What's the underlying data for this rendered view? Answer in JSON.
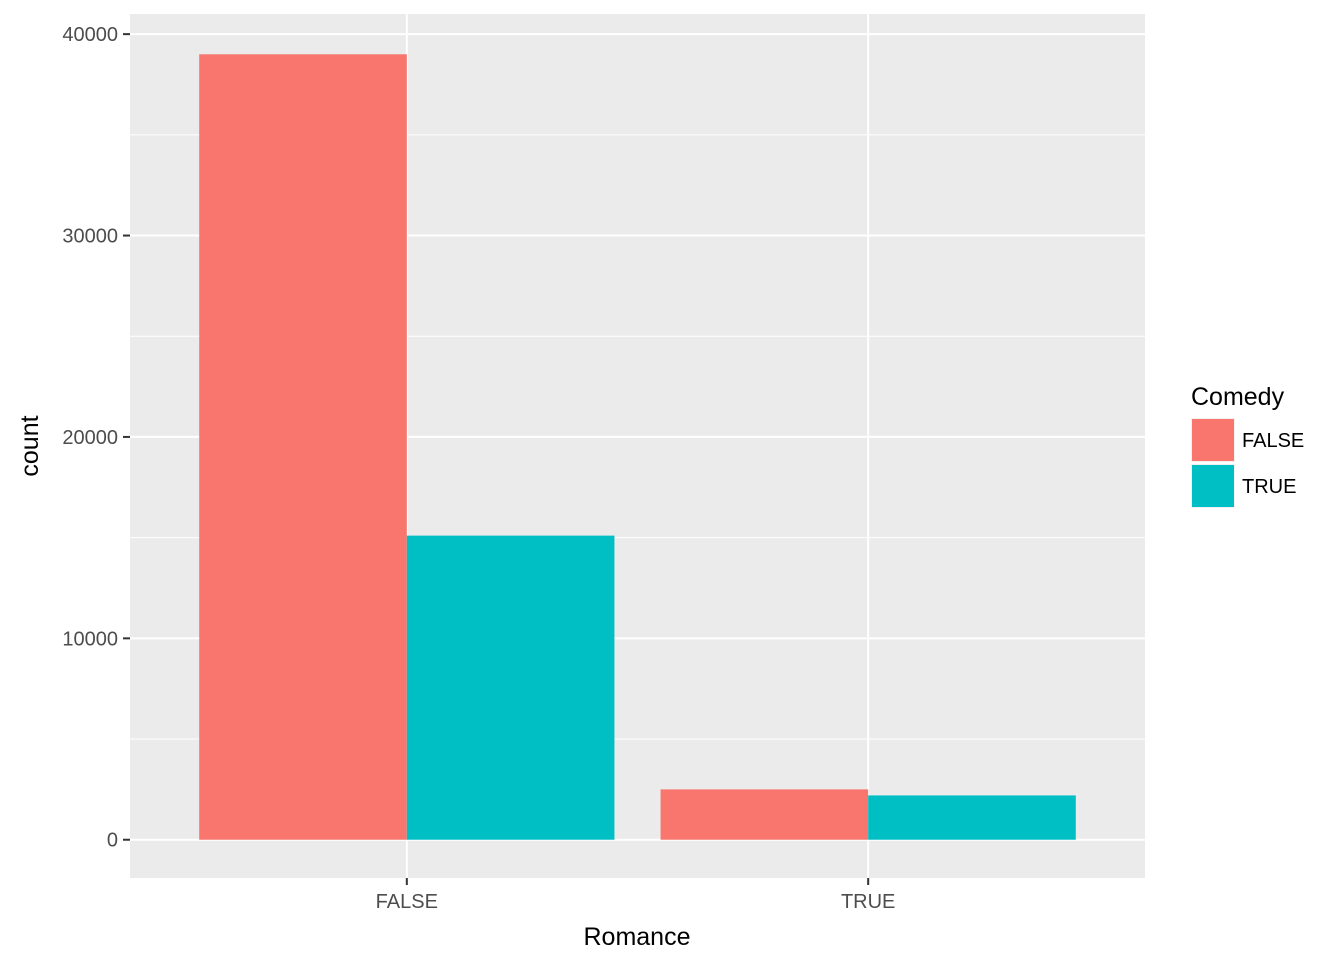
{
  "chart_data": {
    "type": "bar",
    "xlabel": "Romance",
    "ylabel": "count",
    "categories": [
      "FALSE",
      "TRUE"
    ],
    "series": [
      {
        "name": "FALSE",
        "color": "#F8766D",
        "values": [
          39000,
          2500
        ]
      },
      {
        "name": "TRUE",
        "color": "#00BFC4",
        "values": [
          15100,
          2200
        ]
      }
    ],
    "ylim": [
      -1900,
      41000
    ],
    "yticks": [
      0,
      10000,
      20000,
      30000,
      40000
    ],
    "ytick_labels": [
      "0",
      "10000",
      "20000",
      "30000",
      "40000"
    ],
    "legend": {
      "title": "Comedy",
      "placement": "right"
    },
    "panel_background": "#EBEBEB",
    "grid_color": "#FFFFFF",
    "grid": true
  }
}
